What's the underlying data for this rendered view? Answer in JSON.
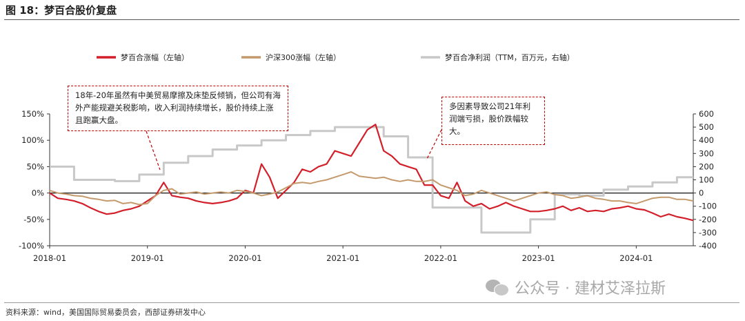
{
  "figure": {
    "title": "图 18：梦百合股价复盘",
    "source": "资料来源：wind，美国国际贸易委员会，西部证券研发中心",
    "watermark": "公众号 · 建材艾泽拉斯"
  },
  "colors": {
    "mhh_price": "#d21f2a",
    "hs300": "#c49a6c",
    "net_profit": "#c8c8c8",
    "annotation_border": "#c00000"
  },
  "annotations": [
    {
      "text": "18年-20年虽然有中美贸易摩擦及床垫反倾销，但公司有海外产能规避关税影响，收入利润持续增长，股价持续上涨且跑赢大盘。"
    },
    {
      "text": "多因素导致公司21年利润端亏损，股价跌幅较大。"
    }
  ],
  "chart_data": {
    "type": "line",
    "title": "",
    "legend": [
      {
        "name": "梦百合涨幅（左轴）",
        "color": "#d21f2a"
      },
      {
        "name": "沪深300涨幅（左轴）",
        "color": "#c49a6c"
      },
      {
        "name": "梦百合净利润（TTM，百万元，右轴）",
        "color": "#c8c8c8"
      }
    ],
    "legend_placement": "top",
    "grid": false,
    "x_axis": {
      "range": [
        "2018-01",
        "2024-08"
      ],
      "ticks": [
        "2018-01",
        "2019-01",
        "2020-01",
        "2021-01",
        "2022-01",
        "2023-01",
        "2024-01"
      ]
    },
    "y_left": {
      "range": [
        -100,
        150
      ],
      "unit": "%",
      "ticks": [
        "-100%",
        "-50%",
        "0%",
        "50%",
        "100%",
        "150%"
      ]
    },
    "y_right": {
      "range": [
        -400,
        600
      ],
      "ticks": [
        "-400",
        "-300",
        "-200",
        "-100",
        "0",
        "100",
        "200",
        "300",
        "400",
        "500",
        "600"
      ]
    },
    "series": [
      {
        "name": "梦百合涨幅（左轴）",
        "axis": "left",
        "x": [
          "2018-01",
          "2018-02",
          "2018-03",
          "2018-04",
          "2018-05",
          "2018-06",
          "2018-07",
          "2018-08",
          "2018-09",
          "2018-10",
          "2018-11",
          "2018-12",
          "2019-01",
          "2019-02",
          "2019-03",
          "2019-04",
          "2019-05",
          "2019-06",
          "2019-07",
          "2019-08",
          "2019-09",
          "2019-10",
          "2019-11",
          "2019-12",
          "2020-01",
          "2020-02",
          "2020-03",
          "2020-04",
          "2020-05",
          "2020-06",
          "2020-07",
          "2020-08",
          "2020-09",
          "2020-10",
          "2020-11",
          "2020-12",
          "2021-01",
          "2021-02",
          "2021-03",
          "2021-04",
          "2021-05",
          "2021-06",
          "2021-07",
          "2021-08",
          "2021-09",
          "2021-10",
          "2021-11",
          "2021-12",
          "2022-01",
          "2022-02",
          "2022-03",
          "2022-04",
          "2022-05",
          "2022-06",
          "2022-07",
          "2022-08",
          "2022-09",
          "2022-10",
          "2022-11",
          "2022-12",
          "2023-01",
          "2023-02",
          "2023-03",
          "2023-04",
          "2023-05",
          "2023-06",
          "2023-07",
          "2023-08",
          "2023-09",
          "2023-10",
          "2023-11",
          "2023-12",
          "2024-01",
          "2024-02",
          "2024-03",
          "2024-04",
          "2024-05",
          "2024-06",
          "2024-07",
          "2024-08"
        ],
        "values": [
          0,
          -10,
          -12,
          -15,
          -20,
          -28,
          -35,
          -40,
          -38,
          -33,
          -30,
          -25,
          -15,
          -5,
          20,
          -5,
          -8,
          -10,
          -15,
          -18,
          -20,
          -18,
          -15,
          -10,
          5,
          0,
          55,
          30,
          -10,
          5,
          20,
          45,
          40,
          50,
          55,
          80,
          75,
          70,
          95,
          120,
          130,
          80,
          70,
          55,
          50,
          45,
          15,
          15,
          -5,
          -10,
          20,
          -15,
          -25,
          -20,
          -30,
          -25,
          -18,
          -25,
          -30,
          -35,
          -35,
          -33,
          -30,
          -25,
          -33,
          -28,
          -35,
          -33,
          -35,
          -30,
          -28,
          -25,
          -30,
          -32,
          -38,
          -45,
          -40,
          -45,
          -48,
          -52
        ]
      },
      {
        "name": "沪深300涨幅（左轴）",
        "axis": "left",
        "x": [
          "2018-01",
          "2018-02",
          "2018-03",
          "2018-04",
          "2018-05",
          "2018-06",
          "2018-07",
          "2018-08",
          "2018-09",
          "2018-10",
          "2018-11",
          "2018-12",
          "2019-01",
          "2019-02",
          "2019-03",
          "2019-04",
          "2019-05",
          "2019-06",
          "2019-07",
          "2019-08",
          "2019-09",
          "2019-10",
          "2019-11",
          "2019-12",
          "2020-01",
          "2020-02",
          "2020-03",
          "2020-04",
          "2020-05",
          "2020-06",
          "2020-07",
          "2020-08",
          "2020-09",
          "2020-10",
          "2020-11",
          "2020-12",
          "2021-01",
          "2021-02",
          "2021-03",
          "2021-04",
          "2021-05",
          "2021-06",
          "2021-07",
          "2021-08",
          "2021-09",
          "2021-10",
          "2021-11",
          "2021-12",
          "2022-01",
          "2022-02",
          "2022-03",
          "2022-04",
          "2022-05",
          "2022-06",
          "2022-07",
          "2022-08",
          "2022-09",
          "2022-10",
          "2022-11",
          "2022-12",
          "2023-01",
          "2023-02",
          "2023-03",
          "2023-04",
          "2023-05",
          "2023-06",
          "2023-07",
          "2023-08",
          "2023-09",
          "2023-10",
          "2023-11",
          "2023-12",
          "2024-01",
          "2024-02",
          "2024-03",
          "2024-04",
          "2024-05",
          "2024-06",
          "2024-07",
          "2024-08"
        ],
        "values": [
          5,
          0,
          -2,
          -5,
          -6,
          -10,
          -12,
          -15,
          -14,
          -20,
          -18,
          -22,
          -20,
          -5,
          5,
          8,
          -2,
          0,
          2,
          -2,
          0,
          2,
          0,
          5,
          3,
          0,
          -5,
          -2,
          2,
          10,
          18,
          20,
          18,
          22,
          25,
          30,
          35,
          40,
          32,
          30,
          28,
          30,
          25,
          22,
          25,
          22,
          22,
          25,
          15,
          10,
          5,
          -5,
          -2,
          5,
          0,
          -5,
          -10,
          -15,
          -10,
          -5,
          0,
          2,
          -3,
          -5,
          -10,
          -8,
          -5,
          -10,
          -12,
          -15,
          -15,
          -18,
          -20,
          -15,
          -10,
          -8,
          -8,
          -12,
          -12,
          -15
        ]
      },
      {
        "name": "梦百合净利润（TTM，百万元，右轴）",
        "axis": "right",
        "step": true,
        "x": [
          "2018-01",
          "2018-03",
          "2018-04",
          "2018-09",
          "2018-12",
          "2019-03",
          "2019-06",
          "2019-09",
          "2019-12",
          "2020-03",
          "2020-06",
          "2020-09",
          "2020-12",
          "2021-03",
          "2021-06",
          "2021-09",
          "2021-12",
          "2022-03",
          "2022-06",
          "2022-09",
          "2022-12",
          "2023-03",
          "2023-06",
          "2023-09",
          "2023-12",
          "2024-03",
          "2024-06",
          "2024-08"
        ],
        "values": [
          200,
          200,
          100,
          90,
          140,
          230,
          280,
          330,
          360,
          400,
          440,
          470,
          500,
          500,
          430,
          270,
          -110,
          -110,
          -300,
          -300,
          -200,
          -10,
          -20,
          25,
          50,
          80,
          120,
          120
        ]
      }
    ]
  }
}
